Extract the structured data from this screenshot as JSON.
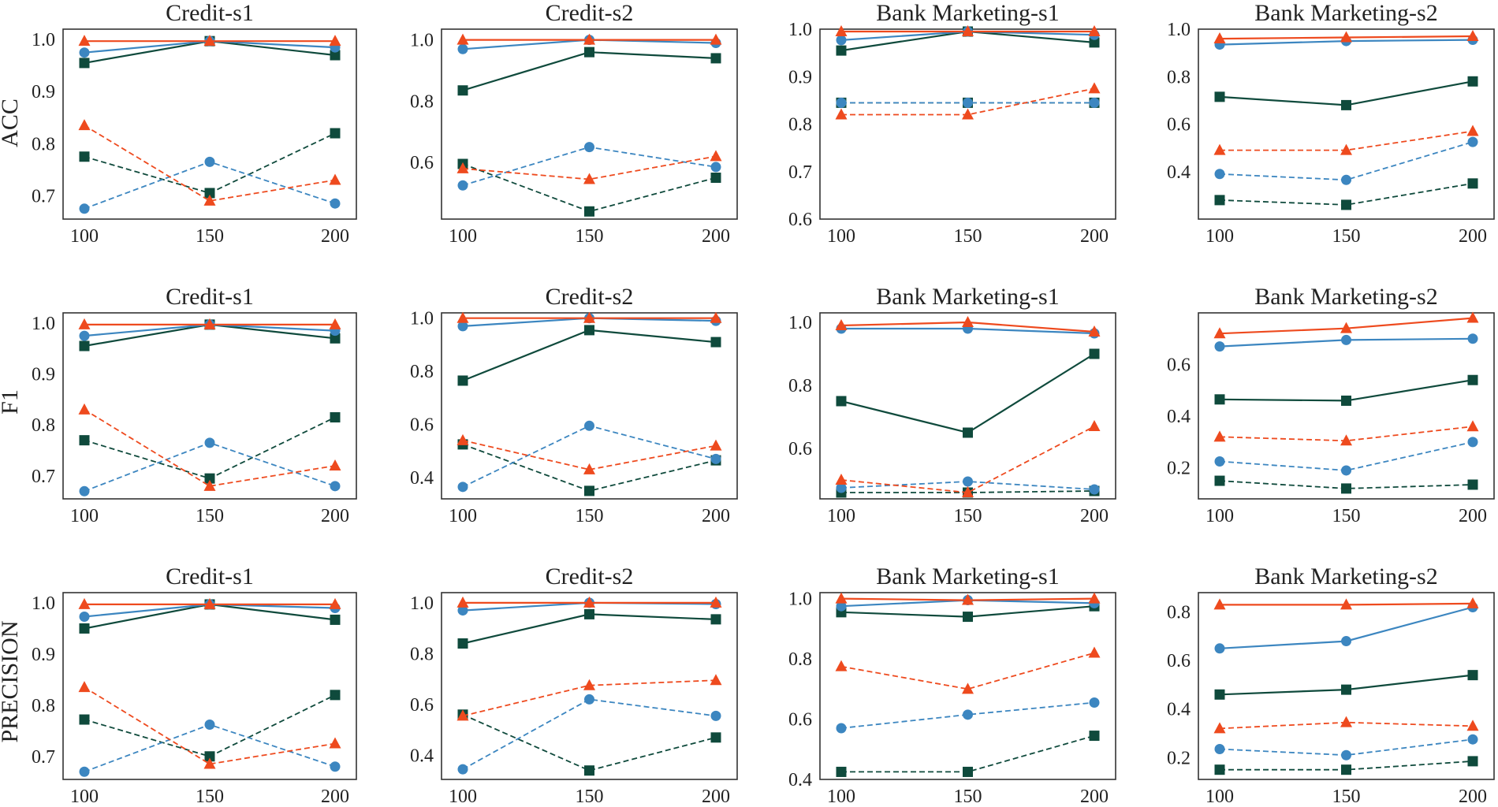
{
  "colors": {
    "red": "#ee4a1e",
    "blue": "#3c86c0",
    "green": "#0f4a3c"
  },
  "chart_data": {
    "type": "line",
    "x": [
      100,
      150,
      200
    ],
    "xticks": [
      "100",
      "150",
      "200"
    ],
    "legend": "none",
    "row_labels": [
      "ACC",
      "F1",
      "PRECISION"
    ],
    "series_style": [
      {
        "color": "red",
        "marker": "triangle",
        "dash": false
      },
      {
        "color": "blue",
        "marker": "circle",
        "dash": false
      },
      {
        "color": "green",
        "marker": "square",
        "dash": false
      },
      {
        "color": "red",
        "marker": "triangle",
        "dash": true
      },
      {
        "color": "blue",
        "marker": "circle",
        "dash": true
      },
      {
        "color": "green",
        "marker": "square",
        "dash": true
      }
    ],
    "panels": [
      {
        "title": "Credit-s1",
        "ylim": [
          0.655,
          1.02
        ],
        "yticks": [
          "0.7",
          "0.8",
          "0.9",
          "1.0"
        ],
        "series": [
          [
            0.997,
            0.997,
            0.997
          ],
          [
            0.975,
            0.997,
            0.985
          ],
          [
            0.955,
            0.997,
            0.97
          ],
          [
            0.835,
            0.69,
            0.73
          ],
          [
            0.675,
            0.765,
            0.685
          ],
          [
            0.775,
            0.705,
            0.82
          ]
        ]
      },
      {
        "title": "Credit-s2",
        "ylim": [
          0.415,
          1.035
        ],
        "yticks": [
          "0.6",
          "0.8",
          "1.0"
        ],
        "series": [
          [
            1.0,
            1.0,
            1.0
          ],
          [
            0.97,
            1.0,
            0.99
          ],
          [
            0.835,
            0.96,
            0.94
          ],
          [
            0.58,
            0.545,
            0.62
          ],
          [
            0.525,
            0.65,
            0.585
          ],
          [
            0.595,
            0.44,
            0.55
          ]
        ]
      },
      {
        "title": "Bank Marketing-s1",
        "ylim": [
          0.6,
          1.0
        ],
        "yticks": [
          "0.6",
          "0.7",
          "0.8",
          "0.9",
          "1.0"
        ],
        "series": [
          [
            0.995,
            0.995,
            0.995
          ],
          [
            0.977,
            0.995,
            0.988
          ],
          [
            0.955,
            0.995,
            0.972
          ],
          [
            0.82,
            0.82,
            0.875
          ],
          [
            0.845,
            0.845,
            0.845
          ],
          [
            0.845,
            0.845,
            0.845
          ]
        ]
      },
      {
        "title": "Bank Marketing-s2",
        "ylim": [
          0.2,
          1.0
        ],
        "yticks": [
          "0.4",
          "0.6",
          "0.8",
          "1.0"
        ],
        "series": [
          [
            0.96,
            0.965,
            0.97
          ],
          [
            0.935,
            0.95,
            0.955
          ],
          [
            0.715,
            0.68,
            0.78
          ],
          [
            0.49,
            0.49,
            0.57
          ],
          [
            0.39,
            0.365,
            0.525
          ],
          [
            0.28,
            0.26,
            0.35
          ]
        ]
      },
      {
        "title": "Credit-s1",
        "ylim": [
          0.655,
          1.02
        ],
        "yticks": [
          "0.7",
          "0.8",
          "0.9",
          "1.0"
        ],
        "series": [
          [
            0.997,
            0.997,
            0.997
          ],
          [
            0.975,
            0.997,
            0.985
          ],
          [
            0.955,
            0.997,
            0.97
          ],
          [
            0.83,
            0.68,
            0.72
          ],
          [
            0.67,
            0.765,
            0.68
          ],
          [
            0.77,
            0.695,
            0.815
          ]
        ]
      },
      {
        "title": "Credit-s2",
        "ylim": [
          0.32,
          1.02
        ],
        "yticks": [
          "0.4",
          "0.6",
          "0.8",
          "1.0"
        ],
        "series": [
          [
            1.0,
            1.0,
            1.0
          ],
          [
            0.97,
            1.0,
            0.99
          ],
          [
            0.765,
            0.955,
            0.91
          ],
          [
            0.54,
            0.43,
            0.52
          ],
          [
            0.365,
            0.595,
            0.47
          ],
          [
            0.525,
            0.35,
            0.465
          ]
        ]
      },
      {
        "title": "Bank Marketing-s1",
        "ylim": [
          0.44,
          1.03
        ],
        "yticks": [
          "0.6",
          "0.8",
          "1.0"
        ],
        "series": [
          [
            0.99,
            1.0,
            0.97
          ],
          [
            0.98,
            0.98,
            0.965
          ],
          [
            0.75,
            0.65,
            0.9
          ],
          [
            0.5,
            0.46,
            0.67
          ],
          [
            0.475,
            0.495,
            0.47
          ],
          [
            0.46,
            0.46,
            0.465
          ]
        ]
      },
      {
        "title": "Bank Marketing-s2",
        "ylim": [
          0.08,
          0.8
        ],
        "yticks": [
          "0.2",
          "0.4",
          "0.6"
        ],
        "series": [
          [
            0.72,
            0.74,
            0.78
          ],
          [
            0.67,
            0.695,
            0.7
          ],
          [
            0.465,
            0.46,
            0.54
          ],
          [
            0.32,
            0.305,
            0.36
          ],
          [
            0.225,
            0.19,
            0.3
          ],
          [
            0.15,
            0.12,
            0.135
          ]
        ]
      },
      {
        "title": "Credit-s1",
        "ylim": [
          0.655,
          1.02
        ],
        "yticks": [
          "0.7",
          "0.8",
          "0.9",
          "1.0"
        ],
        "series": [
          [
            0.997,
            0.997,
            0.997
          ],
          [
            0.973,
            0.997,
            0.99
          ],
          [
            0.95,
            0.997,
            0.967
          ],
          [
            0.835,
            0.685,
            0.725
          ],
          [
            0.67,
            0.762,
            0.68
          ],
          [
            0.772,
            0.7,
            0.82
          ]
        ]
      },
      {
        "title": "Credit-s2",
        "ylim": [
          0.305,
          1.04
        ],
        "yticks": [
          "0.4",
          "0.6",
          "0.8",
          "1.0"
        ],
        "series": [
          [
            1.0,
            1.0,
            1.0
          ],
          [
            0.97,
            1.0,
            0.995
          ],
          [
            0.84,
            0.955,
            0.935
          ],
          [
            0.555,
            0.675,
            0.695
          ],
          [
            0.345,
            0.62,
            0.555
          ],
          [
            0.56,
            0.34,
            0.47
          ]
        ]
      },
      {
        "title": "Bank Marketing-s1",
        "ylim": [
          0.4,
          1.02
        ],
        "yticks": [
          "0.4",
          "0.6",
          "0.8",
          "1.0"
        ],
        "series": [
          [
            1.0,
            0.995,
            1.0
          ],
          [
            0.975,
            0.995,
            0.985
          ],
          [
            0.955,
            0.94,
            0.975
          ],
          [
            0.775,
            0.7,
            0.82
          ],
          [
            0.57,
            0.615,
            0.655
          ],
          [
            0.425,
            0.425,
            0.545
          ]
        ]
      },
      {
        "title": "Bank Marketing-s2",
        "ylim": [
          0.11,
          0.88
        ],
        "yticks": [
          "0.2",
          "0.4",
          "0.6",
          "0.8"
        ],
        "series": [
          [
            0.83,
            0.83,
            0.835
          ],
          [
            0.65,
            0.68,
            0.82
          ],
          [
            0.46,
            0.48,
            0.54
          ],
          [
            0.32,
            0.345,
            0.33
          ],
          [
            0.235,
            0.21,
            0.275
          ],
          [
            0.15,
            0.15,
            0.185
          ]
        ]
      }
    ]
  }
}
